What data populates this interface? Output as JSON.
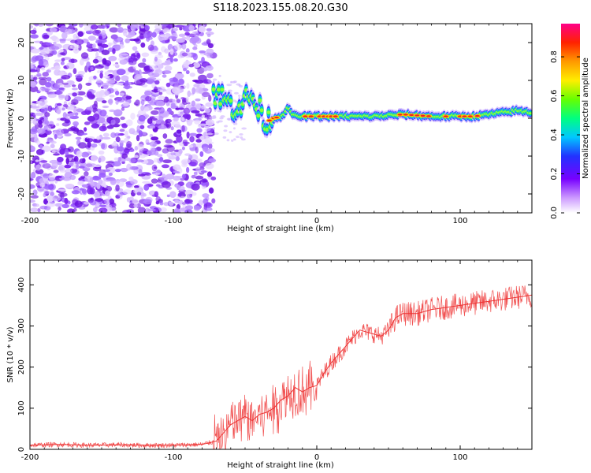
{
  "title": "S118.2023.155.08.20.G30",
  "chart_data": [
    {
      "type": "heatmap",
      "title": "",
      "xlabel": "Height of straight line (km)",
      "ylabel": "Frequency (Hz)",
      "xlim": [
        -200,
        150
      ],
      "ylim": [
        -25,
        25
      ],
      "xticks": [
        -200,
        -100,
        0,
        100
      ],
      "yticks": [
        -20,
        -10,
        0,
        10,
        20
      ],
      "grid": false,
      "colorbar": {
        "label": "Normalized spectral amplitude",
        "range": [
          0,
          0.97
        ],
        "ticks": [
          0.0,
          0.2,
          0.4,
          0.6,
          0.8
        ],
        "colors": [
          "#ffffff",
          "#8800ff",
          "#2222ff",
          "#00c8ff",
          "#00ff66",
          "#aaff00",
          "#ffee00",
          "#ff8800",
          "#ff2200",
          "#ff0080"
        ]
      },
      "noise_region": {
        "x": [
          -200,
          -72
        ],
        "y": [
          -25,
          25
        ]
      },
      "signal_ridge": {
        "x": [
          -72,
          -65,
          -58,
          -52,
          -46,
          -42,
          -38,
          -35,
          -30,
          -25,
          -20,
          -15,
          -10,
          0,
          20,
          40,
          60,
          80,
          100,
          110,
          120,
          130,
          140,
          150
        ],
        "y": [
          7,
          5,
          3,
          4,
          6,
          3,
          1,
          -1,
          0,
          0.5,
          2.5,
          0.5,
          0.5,
          0.5,
          0.5,
          0.5,
          1,
          0.5,
          0.5,
          0.5,
          1,
          1.5,
          2,
          1.5
        ]
      }
    },
    {
      "type": "line",
      "title": "",
      "xlabel": "Height of straight line (km)",
      "ylabel": "SNR (10 * v/v)",
      "xlim": [
        -200,
        150
      ],
      "ylim": [
        0,
        460
      ],
      "xticks": [
        -200,
        -100,
        0,
        100
      ],
      "yticks": [
        0,
        100,
        200,
        300,
        400
      ],
      "grid": false,
      "line_color": "#ee3333",
      "x": [
        -200,
        -180,
        -160,
        -140,
        -120,
        -100,
        -80,
        -70,
        -60,
        -50,
        -45,
        -40,
        -35,
        -30,
        -25,
        -20,
        -15,
        -10,
        -5,
        0,
        5,
        10,
        15,
        20,
        25,
        30,
        35,
        40,
        45,
        50,
        55,
        60,
        70,
        80,
        90,
        100,
        110,
        120,
        130,
        140,
        150
      ],
      "values": [
        10,
        12,
        10,
        11,
        10,
        10,
        12,
        20,
        60,
        80,
        70,
        85,
        90,
        100,
        120,
        130,
        150,
        140,
        150,
        155,
        185,
        210,
        230,
        250,
        270,
        290,
        285,
        280,
        275,
        290,
        320,
        330,
        330,
        340,
        345,
        350,
        355,
        360,
        365,
        370,
        375
      ]
    }
  ]
}
